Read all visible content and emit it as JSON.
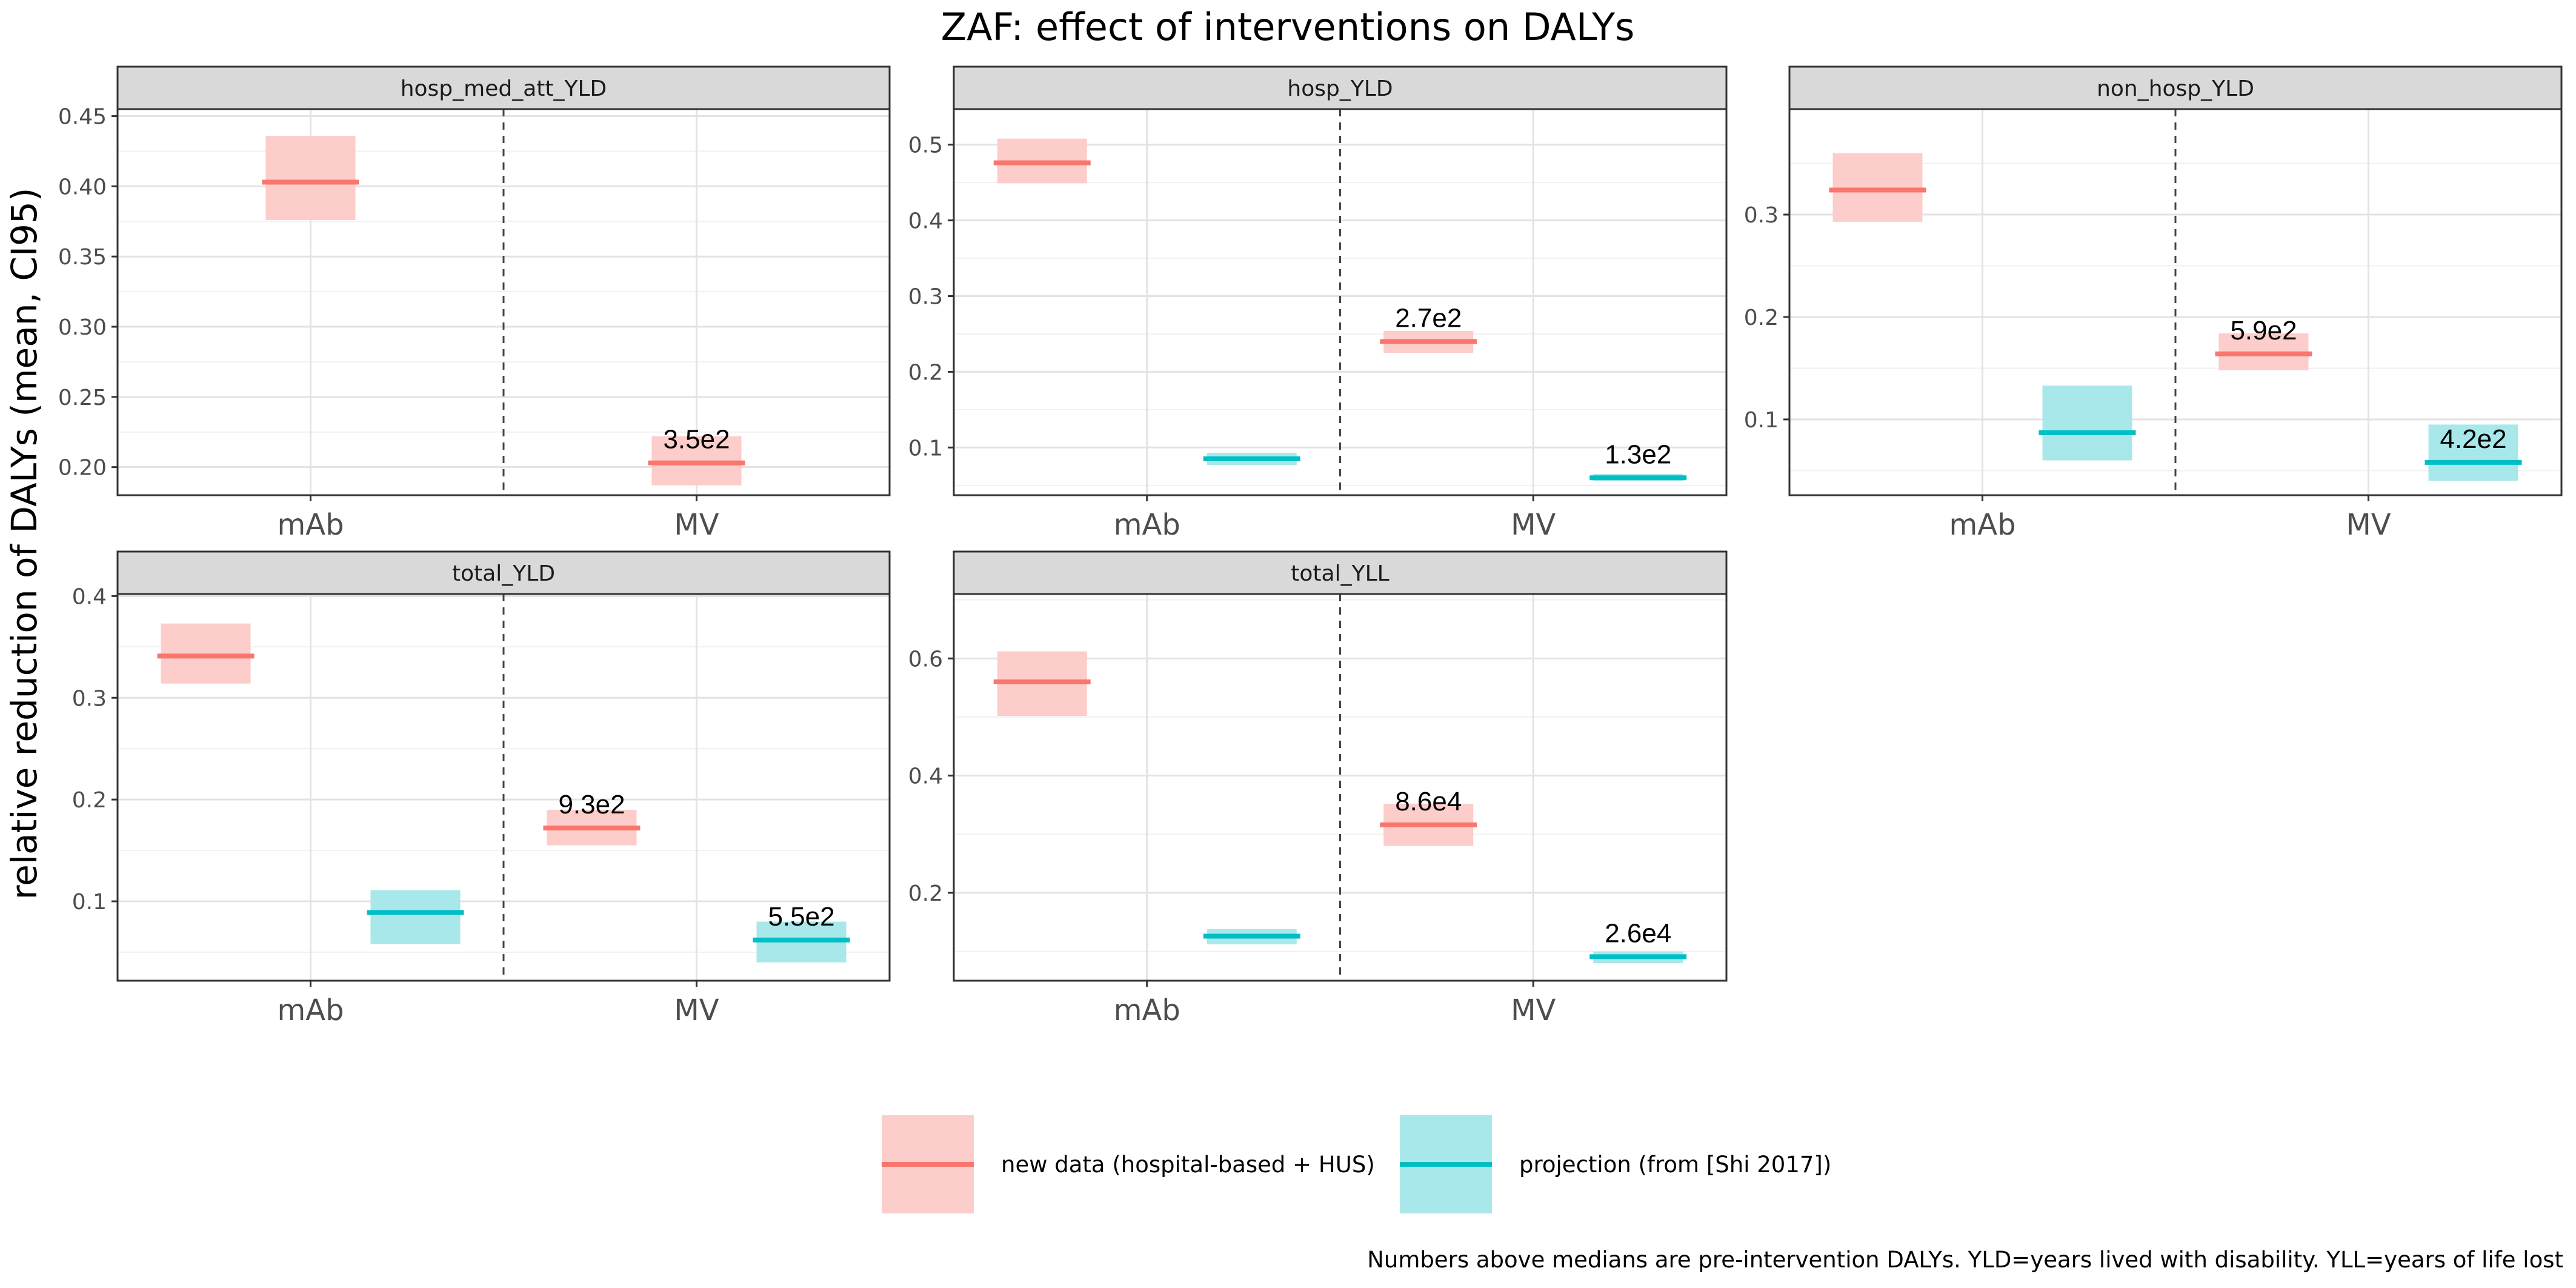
{
  "title": "ZAF: effect of interventions on DALYs",
  "ylabel": "relative reduction of DALYs (mean, CI95)",
  "caption": "Numbers above medians are pre-intervention DALYs. YLD=years lived with disability. YLL=years of life lost",
  "colors": {
    "new_data": "#F8766D",
    "new_data_fill": "#FCCDCA",
    "projection": "#00BFC4",
    "projection_fill": "#A8E8EA"
  },
  "legend": [
    {
      "key": "new_data",
      "label": "new data (hospital-based + HUS)"
    },
    {
      "key": "projection",
      "label": "projection (from [Shi 2017])"
    }
  ],
  "chart_data": {
    "type": "crossbar",
    "categories": [
      "mAb",
      "MV"
    ],
    "series": [
      {
        "key": "new_data",
        "name": "new data (hospital-based + HUS)"
      },
      {
        "key": "projection",
        "name": "projection (from [Shi 2017])"
      }
    ],
    "grid": true,
    "legend_position": "bottom",
    "panels": [
      {
        "name": "hosp_med_att_YLD",
        "ylim": [
          0.18,
          0.455
        ],
        "yticks": [
          0.2,
          0.25,
          0.3,
          0.35,
          0.4,
          0.45
        ],
        "ytick_labels": [
          "0.20",
          "0.25",
          "0.30",
          "0.35",
          "0.40",
          "0.45"
        ],
        "points": [
          {
            "category": "mAb",
            "series": "new_data",
            "mean": 0.403,
            "low": 0.376,
            "high": 0.436,
            "label": ""
          },
          {
            "category": "MV",
            "series": "new_data",
            "mean": 0.203,
            "low": 0.187,
            "high": 0.222,
            "label": "3.5e2"
          }
        ]
      },
      {
        "name": "hosp_YLD",
        "ylim": [
          0.037,
          0.547
        ],
        "yticks": [
          0.1,
          0.2,
          0.3,
          0.4,
          0.5
        ],
        "ytick_labels": [
          "0.1",
          "0.2",
          "0.3",
          "0.4",
          "0.5"
        ],
        "points": [
          {
            "category": "mAb",
            "series": "new_data",
            "mean": 0.476,
            "low": 0.449,
            "high": 0.508,
            "label": ""
          },
          {
            "category": "mAb",
            "series": "projection",
            "mean": 0.085,
            "low": 0.077,
            "high": 0.093,
            "label": ""
          },
          {
            "category": "MV",
            "series": "new_data",
            "mean": 0.24,
            "low": 0.225,
            "high": 0.254,
            "label": "2.7e2"
          },
          {
            "category": "MV",
            "series": "projection",
            "mean": 0.06,
            "low": 0.056,
            "high": 0.065,
            "label": "1.3e2"
          }
        ]
      },
      {
        "name": "non_hosp_YLD",
        "ylim": [
          0.026,
          0.403
        ],
        "yticks": [
          0.1,
          0.2,
          0.3
        ],
        "ytick_labels": [
          "0.1",
          "0.2",
          "0.3"
        ],
        "points": [
          {
            "category": "mAb",
            "series": "new_data",
            "mean": 0.324,
            "low": 0.293,
            "high": 0.36,
            "label": ""
          },
          {
            "category": "mAb",
            "series": "projection",
            "mean": 0.087,
            "low": 0.06,
            "high": 0.133,
            "label": ""
          },
          {
            "category": "MV",
            "series": "new_data",
            "mean": 0.164,
            "low": 0.148,
            "high": 0.184,
            "label": "5.9e2"
          },
          {
            "category": "MV",
            "series": "projection",
            "mean": 0.058,
            "low": 0.04,
            "high": 0.095,
            "label": "4.2e2"
          }
        ]
      },
      {
        "name": "total_YLD",
        "ylim": [
          0.022,
          0.402
        ],
        "yticks": [
          0.1,
          0.2,
          0.3,
          0.4
        ],
        "ytick_labels": [
          "0.1",
          "0.2",
          "0.3",
          "0.4"
        ],
        "points": [
          {
            "category": "mAb",
            "series": "new_data",
            "mean": 0.341,
            "low": 0.314,
            "high": 0.373,
            "label": ""
          },
          {
            "category": "mAb",
            "series": "projection",
            "mean": 0.089,
            "low": 0.058,
            "high": 0.111,
            "label": ""
          },
          {
            "category": "MV",
            "series": "new_data",
            "mean": 0.172,
            "low": 0.155,
            "high": 0.19,
            "label": "9.3e2"
          },
          {
            "category": "MV",
            "series": "projection",
            "mean": 0.062,
            "low": 0.04,
            "high": 0.08,
            "label": "5.5e2"
          }
        ]
      },
      {
        "name": "total_YLL",
        "ylim": [
          0.05,
          0.71
        ],
        "yticks": [
          0.2,
          0.4,
          0.6
        ],
        "ytick_labels": [
          "0.2",
          "0.4",
          "0.6"
        ],
        "points": [
          {
            "category": "mAb",
            "series": "new_data",
            "mean": 0.56,
            "low": 0.502,
            "high": 0.612,
            "label": ""
          },
          {
            "category": "mAb",
            "series": "projection",
            "mean": 0.126,
            "low": 0.112,
            "high": 0.138,
            "label": ""
          },
          {
            "category": "MV",
            "series": "new_data",
            "mean": 0.316,
            "low": 0.28,
            "high": 0.352,
            "label": "8.6e4"
          },
          {
            "category": "MV",
            "series": "projection",
            "mean": 0.091,
            "low": 0.08,
            "high": 0.1,
            "label": "2.6e4"
          }
        ]
      }
    ]
  }
}
